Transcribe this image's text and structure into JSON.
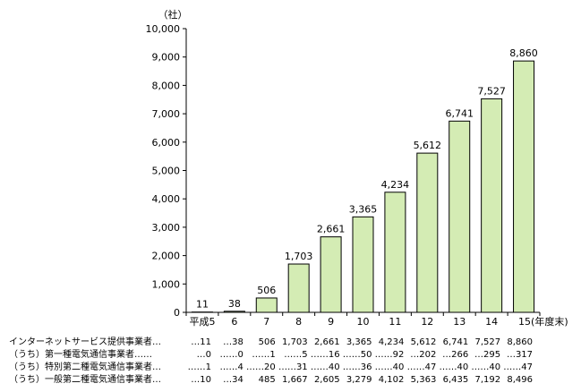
{
  "chart_data": {
    "type": "bar",
    "unit_label": "（社）",
    "categories": [
      "平成5",
      "6",
      "7",
      "8",
      "9",
      "10",
      "11",
      "12",
      "13",
      "14",
      "15(年度末)"
    ],
    "values": [
      11,
      38,
      506,
      1703,
      2661,
      3365,
      4234,
      5612,
      6741,
      7527,
      8860
    ],
    "data_labels": [
      "11",
      "38",
      "506",
      "1,703",
      "2,661",
      "3,365",
      "4,234",
      "5,612",
      "6,741",
      "7,527",
      "8,860"
    ],
    "ylim": [
      0,
      10000
    ],
    "yticks": [
      0,
      1000,
      2000,
      3000,
      4000,
      5000,
      6000,
      7000,
      8000,
      9000,
      10000
    ],
    "ytick_labels": [
      "0",
      "1,000",
      "2,000",
      "3,000",
      "4,000",
      "5,000",
      "6,000",
      "7,000",
      "8,000",
      "9,000",
      "10,000"
    ],
    "grid": false,
    "bar_color": "#d4ecb4",
    "bar_edge_color": "#000000",
    "table": [
      {
        "label": "インターネットサービス提供事業者",
        "leader": "…",
        "cells": [
          {
            "v": "11",
            "lead": "…"
          },
          {
            "v": "38",
            "lead": "…"
          },
          {
            "v": "506",
            "lead": ""
          },
          {
            "v": "1,703",
            "lead": ""
          },
          {
            "v": "2,661",
            "lead": ""
          },
          {
            "v": "3,365",
            "lead": ""
          },
          {
            "v": "4,234",
            "lead": ""
          },
          {
            "v": "5,612",
            "lead": ""
          },
          {
            "v": "6,741",
            "lead": ""
          },
          {
            "v": "7,527",
            "lead": ""
          },
          {
            "v": "8,860",
            "lead": ""
          }
        ]
      },
      {
        "label": "（うち）第一種電気通信事業者",
        "leader": "……",
        "cells": [
          {
            "v": "0",
            "lead": "…"
          },
          {
            "v": "0",
            "lead": "……"
          },
          {
            "v": "1",
            "lead": "……"
          },
          {
            "v": "5",
            "lead": "……"
          },
          {
            "v": "16",
            "lead": "……"
          },
          {
            "v": "50",
            "lead": "……"
          },
          {
            "v": "92",
            "lead": "……"
          },
          {
            "v": "202",
            "lead": "…"
          },
          {
            "v": "266",
            "lead": "…"
          },
          {
            "v": "295",
            "lead": "…"
          },
          {
            "v": "317",
            "lead": "…"
          }
        ]
      },
      {
        "label": "（うち）特別第二種電気通信事業者",
        "leader": "…",
        "cells": [
          {
            "v": "1",
            "lead": "……"
          },
          {
            "v": "4",
            "lead": "……"
          },
          {
            "v": "20",
            "lead": "……"
          },
          {
            "v": "31",
            "lead": "……"
          },
          {
            "v": "40",
            "lead": "……"
          },
          {
            "v": "36",
            "lead": "……"
          },
          {
            "v": "40",
            "lead": "……"
          },
          {
            "v": "47",
            "lead": "……"
          },
          {
            "v": "40",
            "lead": "……"
          },
          {
            "v": "40",
            "lead": "……"
          },
          {
            "v": "47",
            "lead": "……"
          }
        ]
      },
      {
        "label": "（うち）一般第二種電気通信事業者",
        "leader": "…",
        "cells": [
          {
            "v": "10",
            "lead": "…"
          },
          {
            "v": "34",
            "lead": "…"
          },
          {
            "v": "485",
            "lead": ""
          },
          {
            "v": "1,667",
            "lead": ""
          },
          {
            "v": "2,605",
            "lead": ""
          },
          {
            "v": "3,279",
            "lead": ""
          },
          {
            "v": "4,102",
            "lead": ""
          },
          {
            "v": "5,363",
            "lead": ""
          },
          {
            "v": "6,435",
            "lead": ""
          },
          {
            "v": "7,192",
            "lead": ""
          },
          {
            "v": "8,496",
            "lead": ""
          }
        ]
      }
    ]
  }
}
